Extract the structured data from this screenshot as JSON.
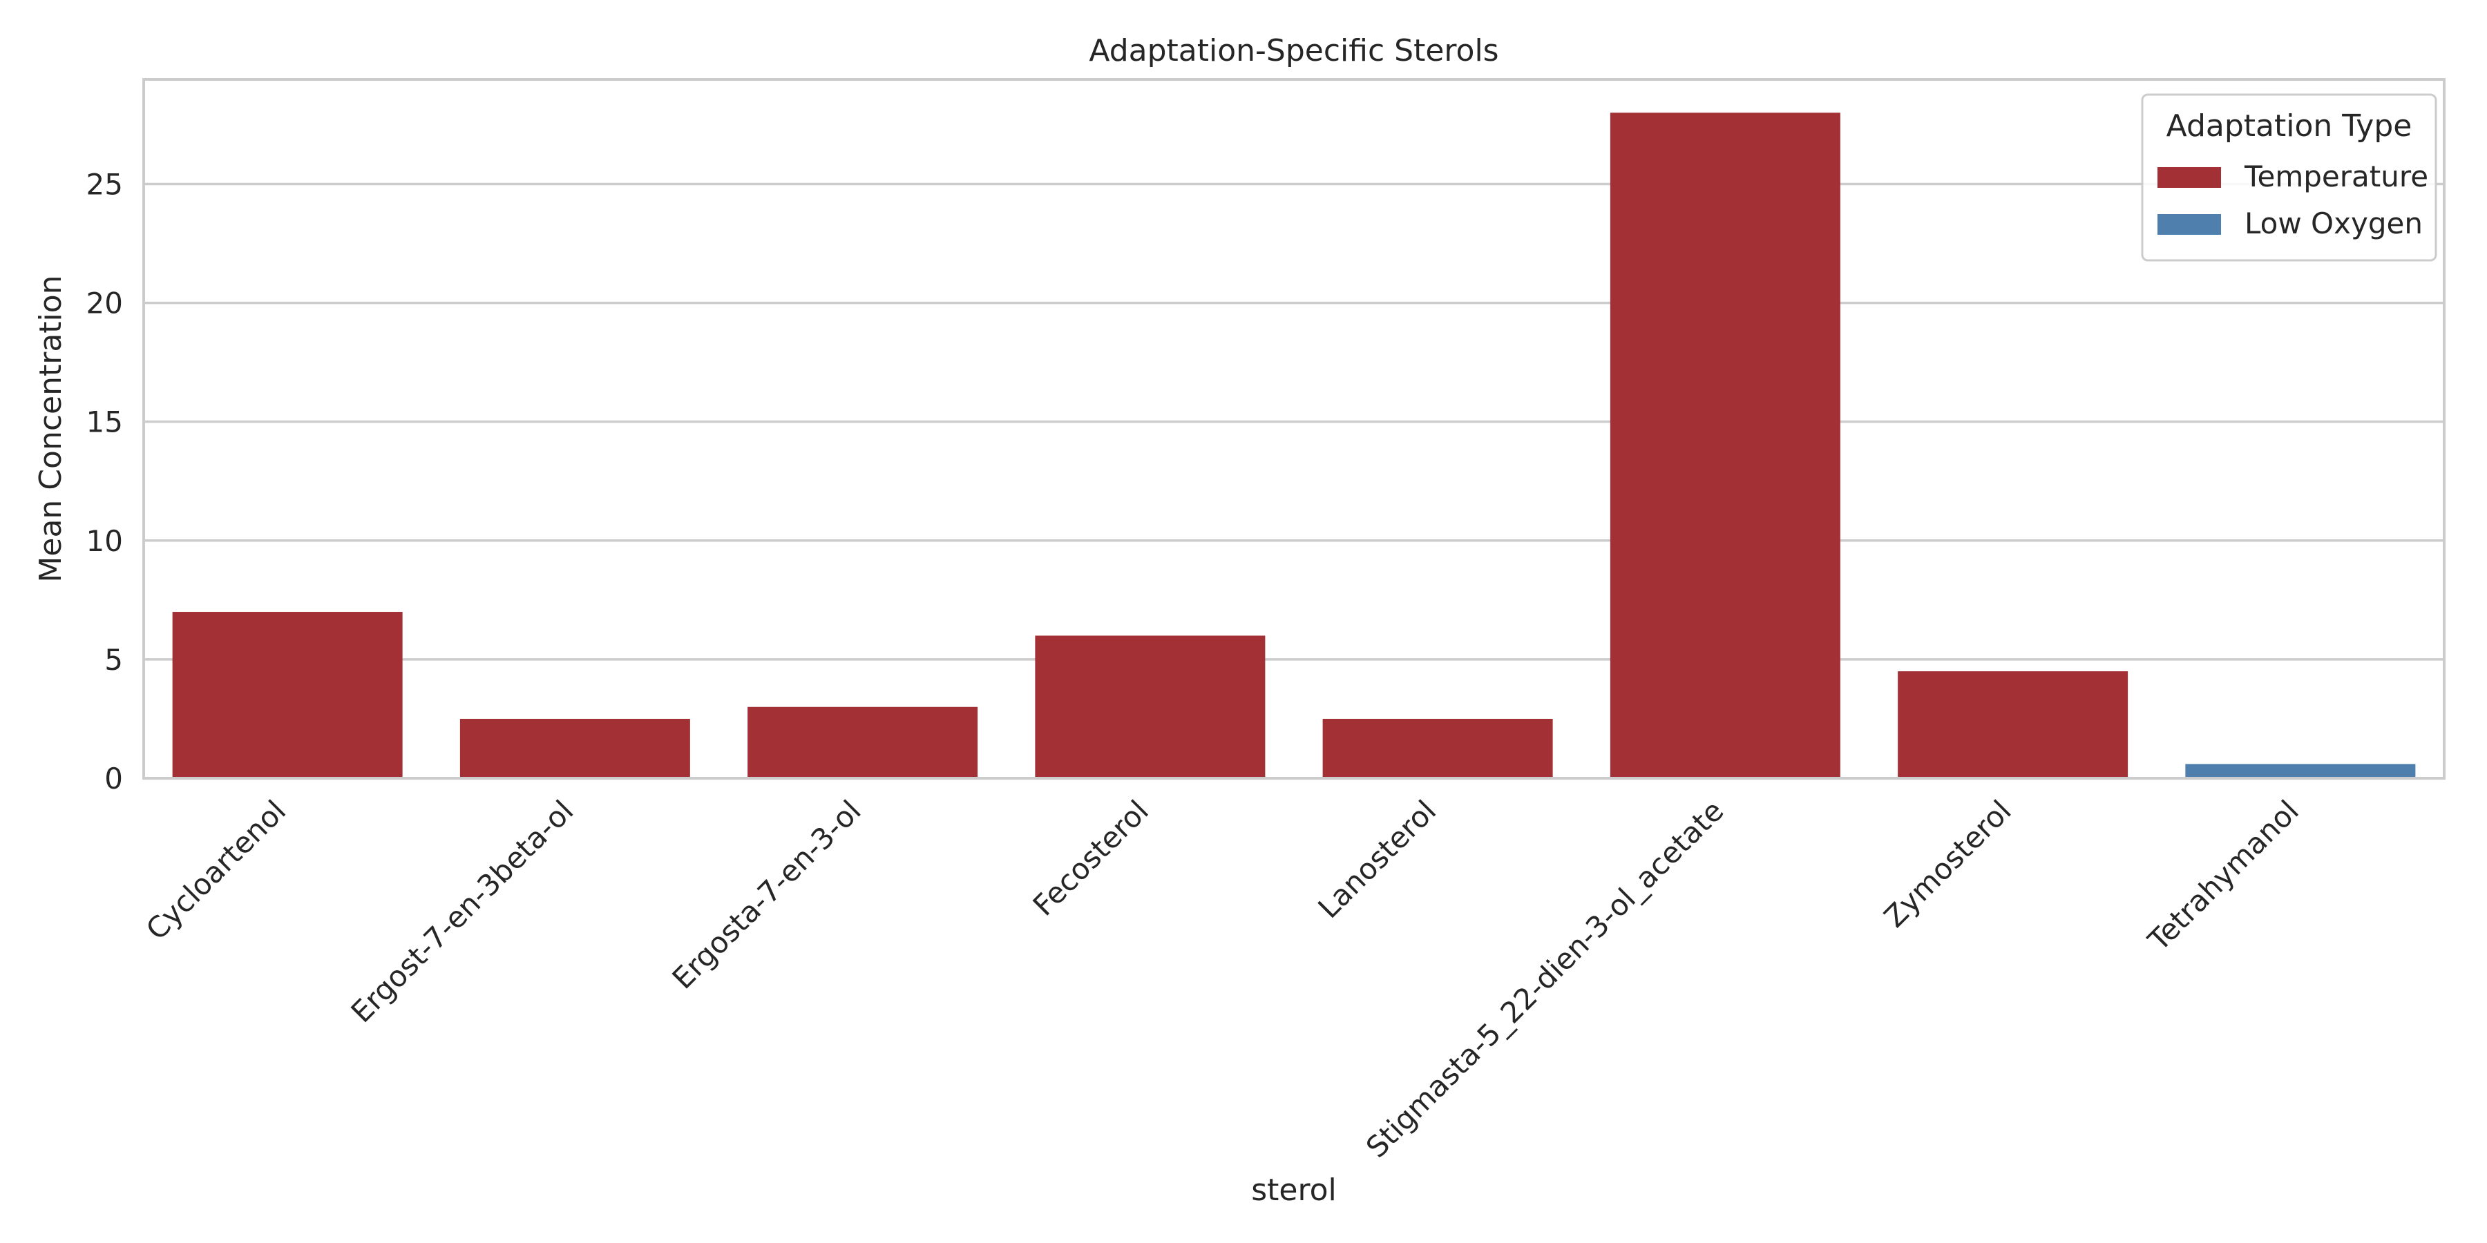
{
  "chart_data": {
    "type": "bar",
    "title": "Adaptation-Specific Sterols",
    "xlabel": "sterol",
    "ylabel": "Mean Concentration",
    "categories": [
      "Cycloartenol",
      "Ergost-7-en-3beta-ol",
      "Ergosta-7-en-3-ol",
      "Fecosterol",
      "Lanosterol",
      "Stigmasta-5_22-dien-3-ol_acetate",
      "Zymosterol",
      "Tetrahymanol"
    ],
    "series": [
      {
        "name": "Temperature",
        "color": "#a23035",
        "values": [
          7,
          2.5,
          3,
          6,
          2.5,
          28,
          4.5,
          null
        ]
      },
      {
        "name": "Low Oxygen",
        "color": "#4f7fad",
        "values": [
          null,
          null,
          null,
          null,
          null,
          null,
          null,
          0.6
        ]
      }
    ],
    "ylim": [
      0,
      29.4
    ],
    "yticks": [
      0,
      5,
      10,
      15,
      20,
      25
    ],
    "grid": true,
    "legend": {
      "title": "Adaptation Type",
      "position": "top-right"
    }
  }
}
